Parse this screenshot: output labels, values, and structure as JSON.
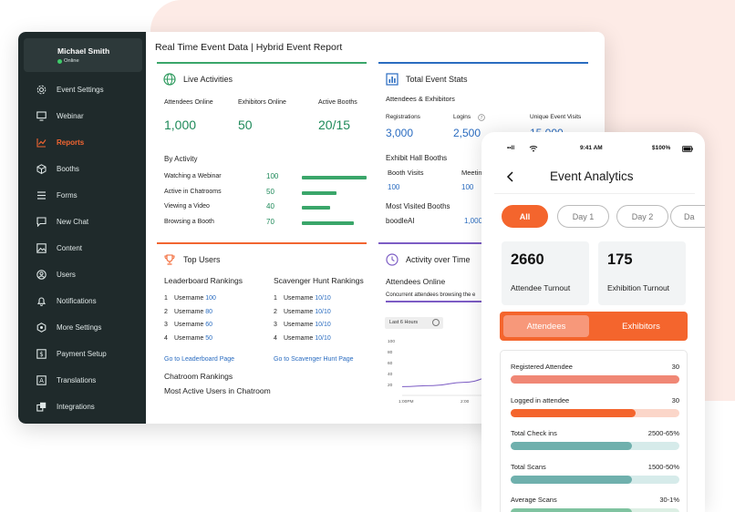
{
  "sidebar": {
    "user_name": "Michael Smith",
    "user_status": "Online",
    "items": [
      {
        "label": "Event Settings",
        "icon": "gear-icon",
        "active": false
      },
      {
        "label": "Webinar",
        "icon": "monitor-icon",
        "active": false
      },
      {
        "label": "Reports",
        "icon": "chart-icon",
        "active": true
      },
      {
        "label": "Booths",
        "icon": "cube-icon",
        "active": false
      },
      {
        "label": "Forms",
        "icon": "list-icon",
        "active": false
      },
      {
        "label": "New Chat",
        "icon": "chat-icon",
        "active": false
      },
      {
        "label": "Content",
        "icon": "image-icon",
        "active": false
      },
      {
        "label": "Users",
        "icon": "user-icon",
        "active": false
      },
      {
        "label": "Notifications",
        "icon": "bell-icon",
        "active": false
      },
      {
        "label": "More Settings",
        "icon": "hexagon-icon",
        "active": false
      },
      {
        "label": "Payment Setup",
        "icon": "dollar-icon",
        "active": false
      },
      {
        "label": "Translations",
        "icon": "translate-icon",
        "active": false
      },
      {
        "label": "Integrations",
        "icon": "integration-icon",
        "active": false
      }
    ]
  },
  "report": {
    "title": "Real Time Event Data | Hybrid Event Report",
    "live": {
      "heading": "Live Activities",
      "attendees_label": "Attendees Online",
      "attendees_value": "1,000",
      "exhibitors_label": "Exhibitors Online",
      "exhibitors_value": "50",
      "booths_label": "Active Booths",
      "booths_value": "20/15",
      "by_activity_label": "By Activity",
      "activities": [
        {
          "label": "Watching a Webinar",
          "value": "100",
          "level": 100
        },
        {
          "label": "Active in Chatrooms",
          "value": "50",
          "level": 54
        },
        {
          "label": "Viewing a Video",
          "value": "40",
          "level": 43
        },
        {
          "label": "Browsing a Booth",
          "value": "70",
          "level": 80
        }
      ]
    },
    "stats": {
      "heading": "Total Event Stats",
      "sub": "Attendees & Exhibitors",
      "registrations_label": "Registrations",
      "registrations_value": "3,000",
      "logins_label": "Logins",
      "logins_value": "2,500",
      "unique_label": "Unique Event Visits",
      "unique_value": "15,000",
      "hall_label": "Exhibit Hall Booths",
      "booth_visits_label": "Booth Visits",
      "booth_visits_value": "100",
      "meetings_label": "Meetin",
      "meetings_value": "100",
      "most_visited_label": "Most Visited Booths",
      "most_visited_name": "boodleAI",
      "most_visited_value": "1,000"
    },
    "top_users": {
      "heading": "Top Users",
      "leaderboard_label": "Leaderboard Rankings",
      "scavenger_label": "Scavenger Hunt Rankings",
      "leaderboard": [
        {
          "rank": "1",
          "name": "Username",
          "score": "100"
        },
        {
          "rank": "2",
          "name": "Username",
          "score": "80"
        },
        {
          "rank": "3",
          "name": "Username",
          "score": "60"
        },
        {
          "rank": "4",
          "name": "Username",
          "score": "50"
        }
      ],
      "scavenger": [
        {
          "rank": "1",
          "name": "Username",
          "score": "10/10"
        },
        {
          "rank": "2",
          "name": "Username",
          "score": "10/10"
        },
        {
          "rank": "3",
          "name": "Username",
          "score": "10/10"
        },
        {
          "rank": "4",
          "name": "Username",
          "score": "10/10"
        }
      ],
      "leaderboard_link": "Go to Leaderboard Page",
      "scavenger_link": "Go to Scavenger Hunt Page",
      "chatroom_label": "Chatroom Rankings",
      "most_active_label": "Most Active Users in Chatroom"
    },
    "activity_time": {
      "heading": "Activity over Time",
      "sub": "Attendees Online",
      "caption": "Concurrent attendees browsing the e",
      "range_label": "Last 6 Hours",
      "chart_data": {
        "type": "line",
        "y_ticks": [
          "100",
          "80",
          "60",
          "40",
          "20"
        ],
        "x_ticks": [
          "1:00PM",
          "2:00",
          "3:00",
          "4:00"
        ],
        "x": [
          0,
          0.5,
          1,
          1.5,
          2,
          2.5,
          3,
          3.5
        ],
        "values": [
          16,
          18,
          24,
          34,
          42,
          40,
          35,
          33
        ],
        "ylim": [
          0,
          100
        ],
        "color": "#7c5cc4"
      }
    }
  },
  "phone": {
    "status_left": "••ll ",
    "time": "9:41 AM",
    "battery": "100%",
    "title": "Event Analytics",
    "tabs": [
      {
        "label": "All",
        "active": true
      },
      {
        "label": "Day 1",
        "active": false
      },
      {
        "label": "Day 2",
        "active": false
      },
      {
        "label": "Da",
        "active": false
      }
    ],
    "turnout": [
      {
        "value": "2660",
        "label": "Attendee Turnout"
      },
      {
        "value": "175",
        "label": "Exhibition Turnout"
      }
    ],
    "segments": [
      {
        "label": "Attendees",
        "active": true
      },
      {
        "label": "Exhibitors",
        "active": false
      }
    ],
    "metrics": [
      {
        "label": "Registered Attendee",
        "value": "30",
        "fill": 1.0,
        "color": "#f08775",
        "track": "#f6c9bf"
      },
      {
        "label": "Logged in attendee",
        "value": "30",
        "fill": 0.74,
        "color": "#f4652d",
        "track": "#fbd6c9"
      },
      {
        "label": "Total Check ins",
        "value": "2500-65%",
        "fill": 0.72,
        "color": "#6fb0ad",
        "track": "#d6ebea"
      },
      {
        "label": "Total Scans",
        "value": "1500-50%",
        "fill": 0.72,
        "color": "#6fb0ad",
        "track": "#d6ebea"
      },
      {
        "label": "Average Scans",
        "value": "30-1%",
        "fill": 0.72,
        "color": "#7fc3a0",
        "track": "#dcefe4"
      }
    ]
  }
}
